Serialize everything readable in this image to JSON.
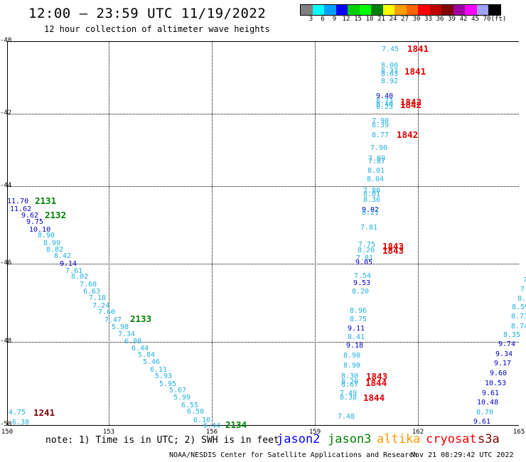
{
  "header": {
    "title": "12:00 — 23:59 UTC 11/19/2022",
    "subtitle": "12 hour collection of altimeter wave heights"
  },
  "colorbar": {
    "colors": [
      "#808080",
      "#00ffff",
      "#00a0ff",
      "#0000ff",
      "#00d000",
      "#00ff00",
      "#008000",
      "#ffff00",
      "#ffa000",
      "#ff6600",
      "#ff0000",
      "#c00000",
      "#800000",
      "#a000a0",
      "#ff00ff",
      "#a0a0ff",
      "#000000"
    ],
    "ticks": [
      "3",
      "6",
      "9",
      "12",
      "15",
      "18",
      "21",
      "24",
      "27",
      "30",
      "33",
      "36",
      "39",
      "42",
      "45",
      "70",
      "(ft)"
    ]
  },
  "axes": {
    "lat_labels": [
      "-40",
      "-42",
      "-44",
      "-46",
      "-48",
      "-50"
    ],
    "lon_labels": [
      "150",
      "153",
      "156",
      "159",
      "162",
      "165"
    ]
  },
  "observations": [
    {
      "v": "7.45",
      "c": "#20b0e0"
    },
    {
      "v": "8.00",
      "c": "#20b0e0"
    },
    {
      "v": "8.33",
      "c": "#20b0e0"
    },
    {
      "v": "8.63",
      "c": "#20b0e0"
    },
    {
      "v": "8.92",
      "c": "#20b0e0"
    },
    {
      "v": "9.40",
      "c": "#0000c8"
    },
    {
      "v": "8.73",
      "c": "#20b0e0"
    },
    {
      "v": "8.40",
      "c": "#20b0e0"
    },
    {
      "v": "8.23",
      "c": "#20b0e0"
    },
    {
      "v": "7.90",
      "c": "#20b0e0"
    },
    {
      "v": "8.39",
      "c": "#20b0e0"
    },
    {
      "v": "8.77",
      "c": "#20b0e0"
    },
    {
      "v": "7.90",
      "c": "#20b0e0"
    },
    {
      "v": "7.89",
      "c": "#20b0e0"
    },
    {
      "v": "7.87",
      "c": "#20b0e0"
    },
    {
      "v": "8.01",
      "c": "#20b0e0"
    },
    {
      "v": "8.04",
      "c": "#20b0e0"
    },
    {
      "v": "7.80",
      "c": "#20b0e0"
    },
    {
      "v": "8.01",
      "c": "#20b0e0"
    },
    {
      "v": "8.36",
      "c": "#20b0e0"
    },
    {
      "v": "9.02",
      "c": "#0000c8"
    },
    {
      "v": "8.21",
      "c": "#20b0e0"
    },
    {
      "v": "7.81",
      "c": "#20b0e0"
    },
    {
      "v": "7.75",
      "c": "#20b0e0"
    },
    {
      "v": "8.20",
      "c": "#20b0e0"
    },
    {
      "v": "7.81",
      "c": "#20b0e0"
    },
    {
      "v": "9.05",
      "c": "#0000c8"
    },
    {
      "v": "7.54",
      "c": "#20b0e0"
    },
    {
      "v": "9.53",
      "c": "#0000c8"
    },
    {
      "v": "8.20",
      "c": "#20b0e0"
    },
    {
      "v": "8.96",
      "c": "#20b0e0"
    },
    {
      "v": "8.75",
      "c": "#20b0e0"
    },
    {
      "v": "9.11",
      "c": "#0000c8"
    },
    {
      "v": "8.41",
      "c": "#20b0e0"
    },
    {
      "v": "9.18",
      "c": "#0000c8"
    },
    {
      "v": "8.90",
      "c": "#20b0e0"
    },
    {
      "v": "8.90",
      "c": "#20b0e0"
    },
    {
      "v": "8.30",
      "c": "#20b0e0"
    },
    {
      "v": "8.20",
      "c": "#20b0e0"
    },
    {
      "v": "8.67",
      "c": "#20b0e0"
    },
    {
      "v": "7.49",
      "c": "#20b0e0"
    },
    {
      "v": "8.38",
      "c": "#20b0e0"
    },
    {
      "v": "7.48",
      "c": "#20b0e0"
    },
    {
      "v": "11.70",
      "c": "#0000c8"
    },
    {
      "v": "11.62",
      "c": "#0000c8"
    },
    {
      "v": "9.62",
      "c": "#0000c8"
    },
    {
      "v": "9.75",
      "c": "#0000c8"
    },
    {
      "v": "10.10",
      "c": "#0000c8"
    },
    {
      "v": "8.90",
      "c": "#20b0e0"
    },
    {
      "v": "8.99",
      "c": "#20b0e0"
    },
    {
      "v": "8.82",
      "c": "#20b0e0"
    },
    {
      "v": "8.42",
      "c": "#20b0e0"
    },
    {
      "v": "9.14",
      "c": "#0000c8"
    },
    {
      "v": "7.61",
      "c": "#20b0e0"
    },
    {
      "v": "8.02",
      "c": "#20b0e0"
    },
    {
      "v": "7.60",
      "c": "#20b0e0"
    },
    {
      "v": "6.63",
      "c": "#20b0e0"
    },
    {
      "v": "7.18",
      "c": "#20b0e0"
    },
    {
      "v": "7.24",
      "c": "#20b0e0"
    },
    {
      "v": "7.60",
      "c": "#20b0e0"
    },
    {
      "v": "7.47",
      "c": "#20b0e0"
    },
    {
      "v": "5.98",
      "c": "#20b0e0"
    },
    {
      "v": "7.34",
      "c": "#20b0e0"
    },
    {
      "v": "6.98",
      "c": "#20b0e0"
    },
    {
      "v": "6.44",
      "c": "#20b0e0"
    },
    {
      "v": "5.84",
      "c": "#20b0e0"
    },
    {
      "v": "5.46",
      "c": "#20b0e0"
    },
    {
      "v": "6.11",
      "c": "#20b0e0"
    },
    {
      "v": "5.93",
      "c": "#20b0e0"
    },
    {
      "v": "5.95",
      "c": "#20b0e0"
    },
    {
      "v": "5.67",
      "c": "#20b0e0"
    },
    {
      "v": "5.99",
      "c": "#20b0e0"
    },
    {
      "v": "6.55",
      "c": "#20b0e0"
    },
    {
      "v": "6.50",
      "c": "#20b0e0"
    },
    {
      "v": "6.10",
      "c": "#20b0e0"
    },
    {
      "v": "6.44",
      "c": "#20b0e0"
    },
    {
      "v": "4.75",
      "c": "#20b0e0"
    },
    {
      "v": "6.38",
      "c": "#20b0e0"
    },
    {
      "v": "7.",
      "c": "#20b0e0"
    },
    {
      "v": "7.",
      "c": "#20b0e0"
    },
    {
      "v": "8.4",
      "c": "#20b0e0"
    },
    {
      "v": "8.59",
      "c": "#20b0e0"
    },
    {
      "v": "8.71",
      "c": "#20b0e0"
    },
    {
      "v": "8.74",
      "c": "#20b0e0"
    },
    {
      "v": "8.35",
      "c": "#20b0e0"
    },
    {
      "v": "9.74",
      "c": "#0000c8"
    },
    {
      "v": "9.34",
      "c": "#0000c8"
    },
    {
      "v": "9.17",
      "c": "#0000c8"
    },
    {
      "v": "9.60",
      "c": "#0000c8"
    },
    {
      "v": "10.53",
      "c": "#0000c8"
    },
    {
      "v": "9.61",
      "c": "#0000c8"
    },
    {
      "v": "10.48",
      "c": "#0000c8"
    },
    {
      "v": "8.70",
      "c": "#20b0e0"
    },
    {
      "v": "9.61",
      "c": "#0000c8"
    }
  ],
  "pass_labels": [
    {
      "t": "1841",
      "c": "#e00000"
    },
    {
      "t": "1841",
      "c": "#e00000"
    },
    {
      "t": "1842",
      "c": "#e00000"
    },
    {
      "t": "1842",
      "c": "#e00000"
    },
    {
      "t": "1842",
      "c": "#e00000"
    },
    {
      "t": "1843",
      "c": "#e00000"
    },
    {
      "t": "1843",
      "c": "#e00000"
    },
    {
      "t": "1843",
      "c": "#e00000"
    },
    {
      "t": "1844",
      "c": "#e00000"
    },
    {
      "t": "1844",
      "c": "#e00000"
    },
    {
      "t": "2131",
      "c": "#008000"
    },
    {
      "t": "2132",
      "c": "#008000"
    },
    {
      "t": "2133",
      "c": "#008000"
    },
    {
      "t": "2134",
      "c": "#008000"
    },
    {
      "t": "1241",
      "c": "#800000"
    }
  ],
  "footer": {
    "note": "note: 1) Time is in UTC; 2) SWH is in feet",
    "legend": [
      {
        "name": "jason2",
        "color": "#0000ff"
      },
      {
        "name": "jason3",
        "color": "#008000"
      },
      {
        "name": "altika",
        "color": "#ff9900"
      },
      {
        "name": "cryosat",
        "color": "#ff0000"
      },
      {
        "name": "s3a",
        "color": "#800000"
      }
    ],
    "credit": "NOAA/NESDIS Center for Satellite Applications and Research",
    "timestamp": "Nov 21 08:29:42 UTC 2022"
  }
}
